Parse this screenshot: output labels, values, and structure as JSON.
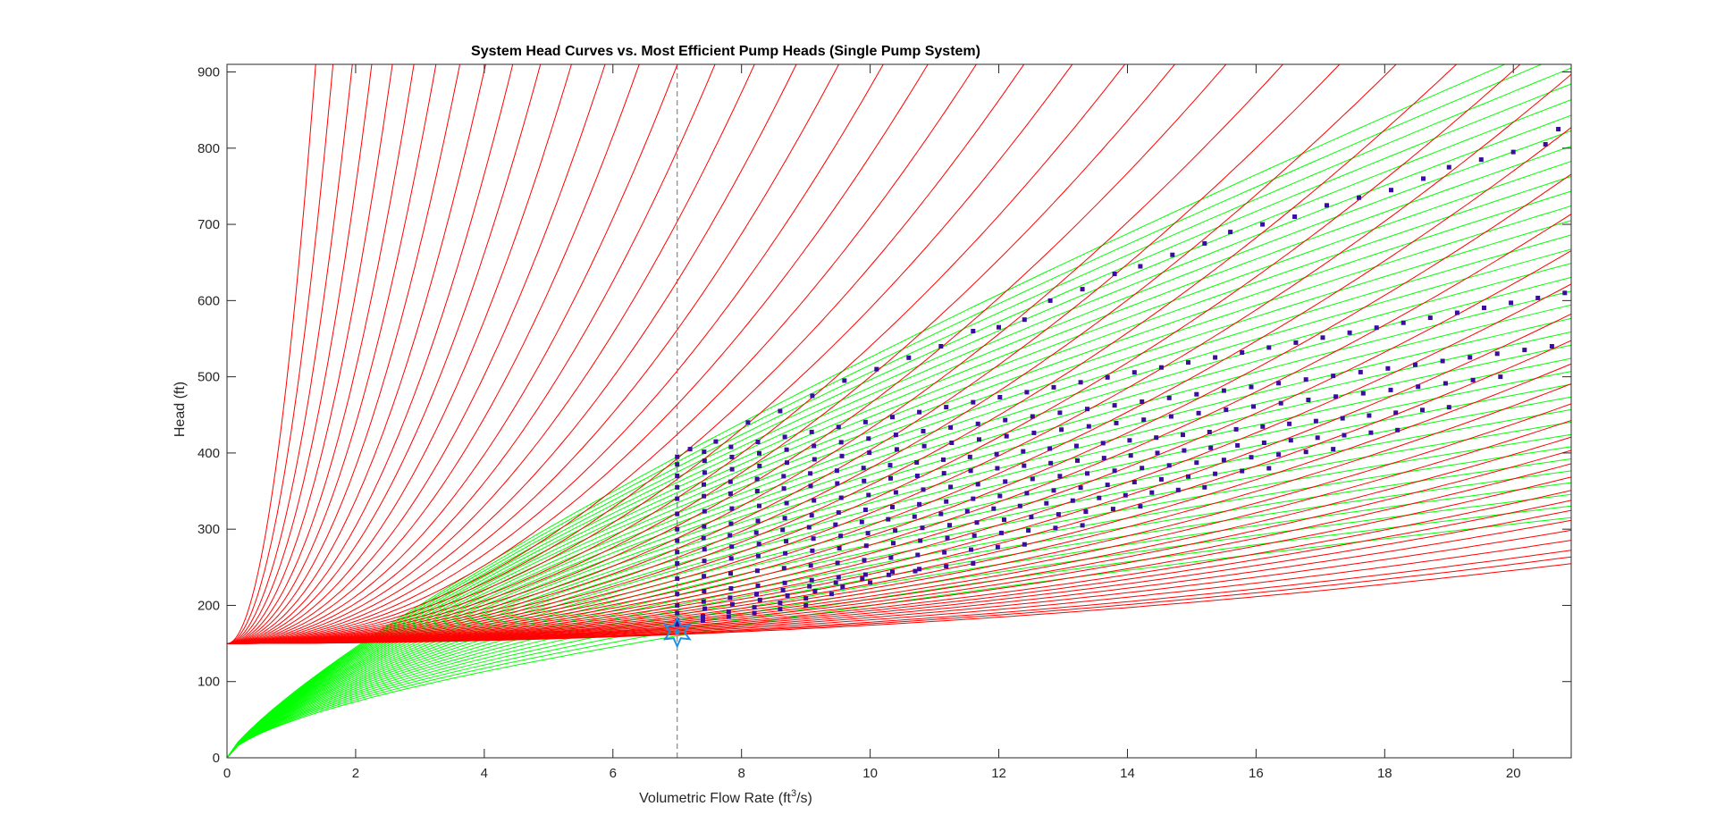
{
  "chart_data": {
    "type": "line",
    "title": "System Head Curves vs. Most Efficient Pump Heads (Single Pump System)",
    "xlabel": "Volumetric Flow Rate (ft",
    "xlabel_sup": "3",
    "xlabel_suffix": "/s)",
    "ylabel": "Head (ft)",
    "xlim": [
      0,
      20.9
    ],
    "ylim": [
      0,
      910
    ],
    "x_ticks": [
      0,
      2,
      4,
      6,
      8,
      10,
      12,
      14,
      16,
      18,
      20
    ],
    "y_ticks": [
      0,
      100,
      200,
      300,
      400,
      500,
      600,
      700,
      800,
      900
    ],
    "grid": false,
    "legend": "none",
    "colors": {
      "system_curves": "#ff0000",
      "pump_curves": "#00ff00",
      "efficient_points": "#3a0d9e",
      "design_marker": "#1f8fe6",
      "design_line": "#707070",
      "axes": "#262626"
    },
    "system_curves": {
      "description_static_head": 150,
      "static_head_ft": 150,
      "k_values": [
        400,
        280,
        200,
        150,
        115,
        90,
        72,
        58,
        47,
        38.5,
        32,
        26.5,
        22,
        18.5,
        15.5,
        13.2,
        11.3,
        9.7,
        8.4,
        7.3,
        6.4,
        5.6,
        4.95,
        4.4,
        3.9,
        3.5,
        3.15,
        2.82,
        2.54,
        2.3,
        2.08,
        1.88,
        1.71,
        1.55,
        1.41,
        1.29,
        1.18,
        1.08,
        0.99,
        0.91,
        0.84,
        0.78,
        0.72,
        0.67,
        0.62,
        0.58,
        0.54,
        0.5,
        0.46,
        0.43,
        0.4,
        0.37,
        0.34,
        0.31,
        0.28,
        0.26,
        0.24
      ]
    },
    "pump_curves": {
      "x_start": 0,
      "x_range": [
        0,
        20.9
      ],
      "head_at_x7_min": 160,
      "head_at_x7_max": 395,
      "count": 36
    },
    "efficient_points": {
      "rows_lower_x": 7.0,
      "head_at_x7": [
        175,
        180,
        190,
        200,
        215,
        235,
        255,
        270,
        285,
        300,
        320,
        340,
        355,
        370,
        385,
        395
      ],
      "x_end": [
        9.0,
        9.4,
        10.0,
        10.7,
        11.6,
        12.4,
        13.3,
        14.2,
        15.2,
        16.2,
        17.2,
        18.2,
        19.0,
        19.8,
        20.6,
        20.8
      ],
      "head_end": [
        200,
        215,
        230,
        245,
        255,
        280,
        305,
        330,
        355,
        380,
        405,
        430,
        460,
        500,
        540,
        610
      ],
      "upper_points": [
        [
          7.2,
          405
        ],
        [
          7.6,
          415
        ],
        [
          8.1,
          440
        ],
        [
          8.6,
          455
        ],
        [
          9.1,
          475
        ],
        [
          9.6,
          495
        ],
        [
          10.1,
          510
        ],
        [
          10.6,
          525
        ],
        [
          11.1,
          540
        ],
        [
          11.6,
          560
        ],
        [
          12.0,
          565
        ],
        [
          12.4,
          575
        ],
        [
          12.8,
          600
        ],
        [
          13.3,
          615
        ],
        [
          13.8,
          635
        ],
        [
          14.2,
          645
        ],
        [
          14.7,
          660
        ],
        [
          15.2,
          675
        ],
        [
          15.6,
          690
        ],
        [
          16.1,
          700
        ],
        [
          16.6,
          710
        ],
        [
          17.1,
          725
        ],
        [
          17.6,
          735
        ],
        [
          18.1,
          745
        ],
        [
          18.6,
          760
        ],
        [
          19.0,
          775
        ],
        [
          19.5,
          785
        ],
        [
          20.0,
          795
        ],
        [
          20.5,
          805
        ],
        [
          20.7,
          825
        ]
      ]
    },
    "design_point": {
      "x": 7.0,
      "head": 165
    }
  }
}
